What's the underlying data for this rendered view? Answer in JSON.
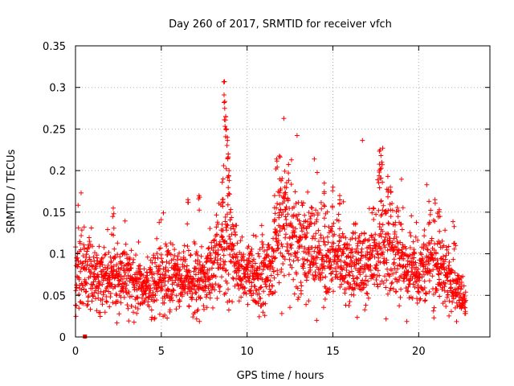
{
  "chart_data": {
    "type": "scatter",
    "title": "Day 260 of 2017, SRMTID for receiver vfch",
    "xlabel": "GPS time / hours",
    "ylabel": "SRMTID / TECUs",
    "xlim": [
      0,
      24.15
    ],
    "ylim": [
      0,
      0.35
    ],
    "xticks": [
      0,
      5,
      10,
      15,
      20
    ],
    "xtick_labels": [
      "0",
      "5",
      "10",
      "15",
      "20"
    ],
    "yticks": [
      0,
      0.05,
      0.1,
      0.15,
      0.2,
      0.25,
      0.3,
      0.35
    ],
    "ytick_labels": [
      "0",
      "0.05",
      "0.1",
      "0.15",
      "0.2",
      "0.25",
      "0.3",
      "0.35"
    ],
    "grid": true,
    "marker": "plus",
    "color": "#ff0000",
    "series": [
      {
        "name": "vfch",
        "x_start": 0.0,
        "x_end": 22.75,
        "n_points": 2400,
        "profile": [
          [
            0.0,
            0.075
          ],
          [
            0.5,
            0.078
          ],
          [
            1.0,
            0.07
          ],
          [
            1.5,
            0.065
          ],
          [
            2.0,
            0.072
          ],
          [
            2.5,
            0.07
          ],
          [
            3.0,
            0.068
          ],
          [
            3.5,
            0.065
          ],
          [
            4.0,
            0.06
          ],
          [
            4.5,
            0.062
          ],
          [
            5.0,
            0.07
          ],
          [
            5.5,
            0.072
          ],
          [
            6.0,
            0.068
          ],
          [
            6.5,
            0.06
          ],
          [
            7.0,
            0.065
          ],
          [
            7.5,
            0.07
          ],
          [
            8.0,
            0.08
          ],
          [
            8.5,
            0.1
          ],
          [
            8.8,
            0.12
          ],
          [
            9.2,
            0.1
          ],
          [
            9.5,
            0.085
          ],
          [
            10.0,
            0.075
          ],
          [
            10.5,
            0.072
          ],
          [
            11.0,
            0.075
          ],
          [
            11.5,
            0.09
          ],
          [
            12.0,
            0.13
          ],
          [
            12.5,
            0.12
          ],
          [
            13.0,
            0.115
          ],
          [
            13.5,
            0.11
          ],
          [
            14.0,
            0.1
          ],
          [
            14.5,
            0.095
          ],
          [
            15.0,
            0.09
          ],
          [
            15.5,
            0.088
          ],
          [
            16.0,
            0.085
          ],
          [
            16.5,
            0.085
          ],
          [
            17.0,
            0.09
          ],
          [
            17.5,
            0.1
          ],
          [
            18.0,
            0.11
          ],
          [
            18.5,
            0.1
          ],
          [
            19.0,
            0.09
          ],
          [
            19.5,
            0.08
          ],
          [
            20.0,
            0.075
          ],
          [
            20.5,
            0.085
          ],
          [
            21.0,
            0.09
          ],
          [
            21.5,
            0.08
          ],
          [
            22.0,
            0.065
          ],
          [
            22.5,
            0.045
          ],
          [
            22.75,
            0.035
          ]
        ],
        "spikes": [
          [
            8.68,
            0.307
          ],
          [
            8.7,
            0.283
          ],
          [
            8.75,
            0.265
          ],
          [
            8.8,
            0.25
          ],
          [
            8.85,
            0.24
          ],
          [
            8.9,
            0.22
          ],
          [
            8.95,
            0.2
          ],
          [
            8.6,
            0.19
          ],
          [
            8.55,
            0.186
          ],
          [
            11.72,
            0.214
          ],
          [
            11.9,
            0.19
          ],
          [
            11.6,
            0.17
          ],
          [
            12.2,
            0.18
          ],
          [
            14.5,
            0.185
          ],
          [
            15.0,
            0.18
          ],
          [
            15.4,
            0.17
          ],
          [
            17.75,
            0.225
          ],
          [
            17.8,
            0.218
          ],
          [
            17.85,
            0.21
          ],
          [
            17.7,
            0.2
          ],
          [
            18.2,
            0.193
          ],
          [
            18.35,
            0.18
          ],
          [
            2.2,
            0.155
          ],
          [
            6.55,
            0.165
          ],
          [
            7.2,
            0.17
          ],
          [
            20.6,
            0.163
          ],
          [
            21.2,
            0.153
          ]
        ],
        "isolated": [
          [
            0.55,
            0.0
          ]
        ]
      }
    ]
  }
}
